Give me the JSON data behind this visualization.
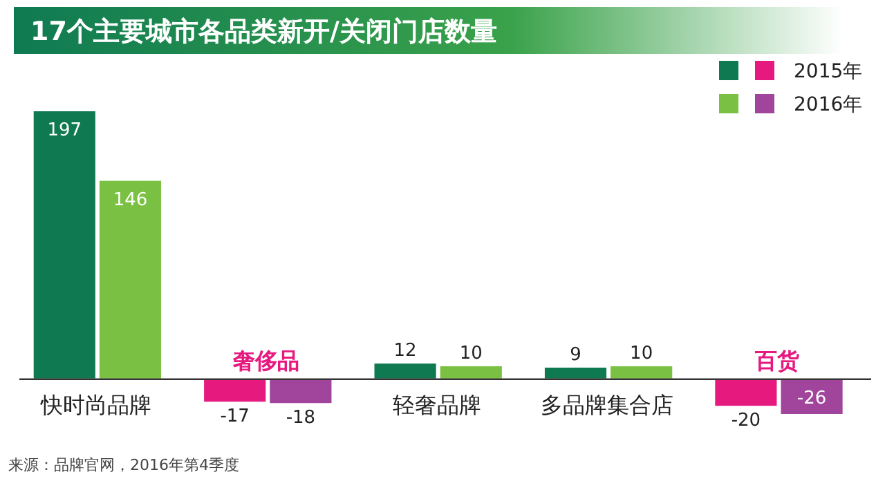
{
  "chart_data": {
    "type": "bar",
    "title": "17个主要城市各品类新开/关闭门店数量",
    "categories": [
      "快时尚品牌",
      "奢侈品",
      "轻奢品牌",
      "多品牌集合店",
      "百货"
    ],
    "series": [
      {
        "name": "2015年",
        "colors": [
          "#0f7a52",
          "#e6197f",
          "#0f7a52",
          "#0f7a52",
          "#e6197f"
        ],
        "values": [
          197,
          -17,
          12,
          9,
          -20
        ]
      },
      {
        "name": "2016年",
        "colors": [
          "#7ac143",
          "#a0459b",
          "#7ac143",
          "#7ac143",
          "#a0459b"
        ],
        "values": [
          146,
          -18,
          10,
          10,
          -26
        ]
      }
    ],
    "data_labels": true,
    "legend": "top right",
    "annotations": [
      "来源：品牌官网，2016年第4季度"
    ]
  }
}
